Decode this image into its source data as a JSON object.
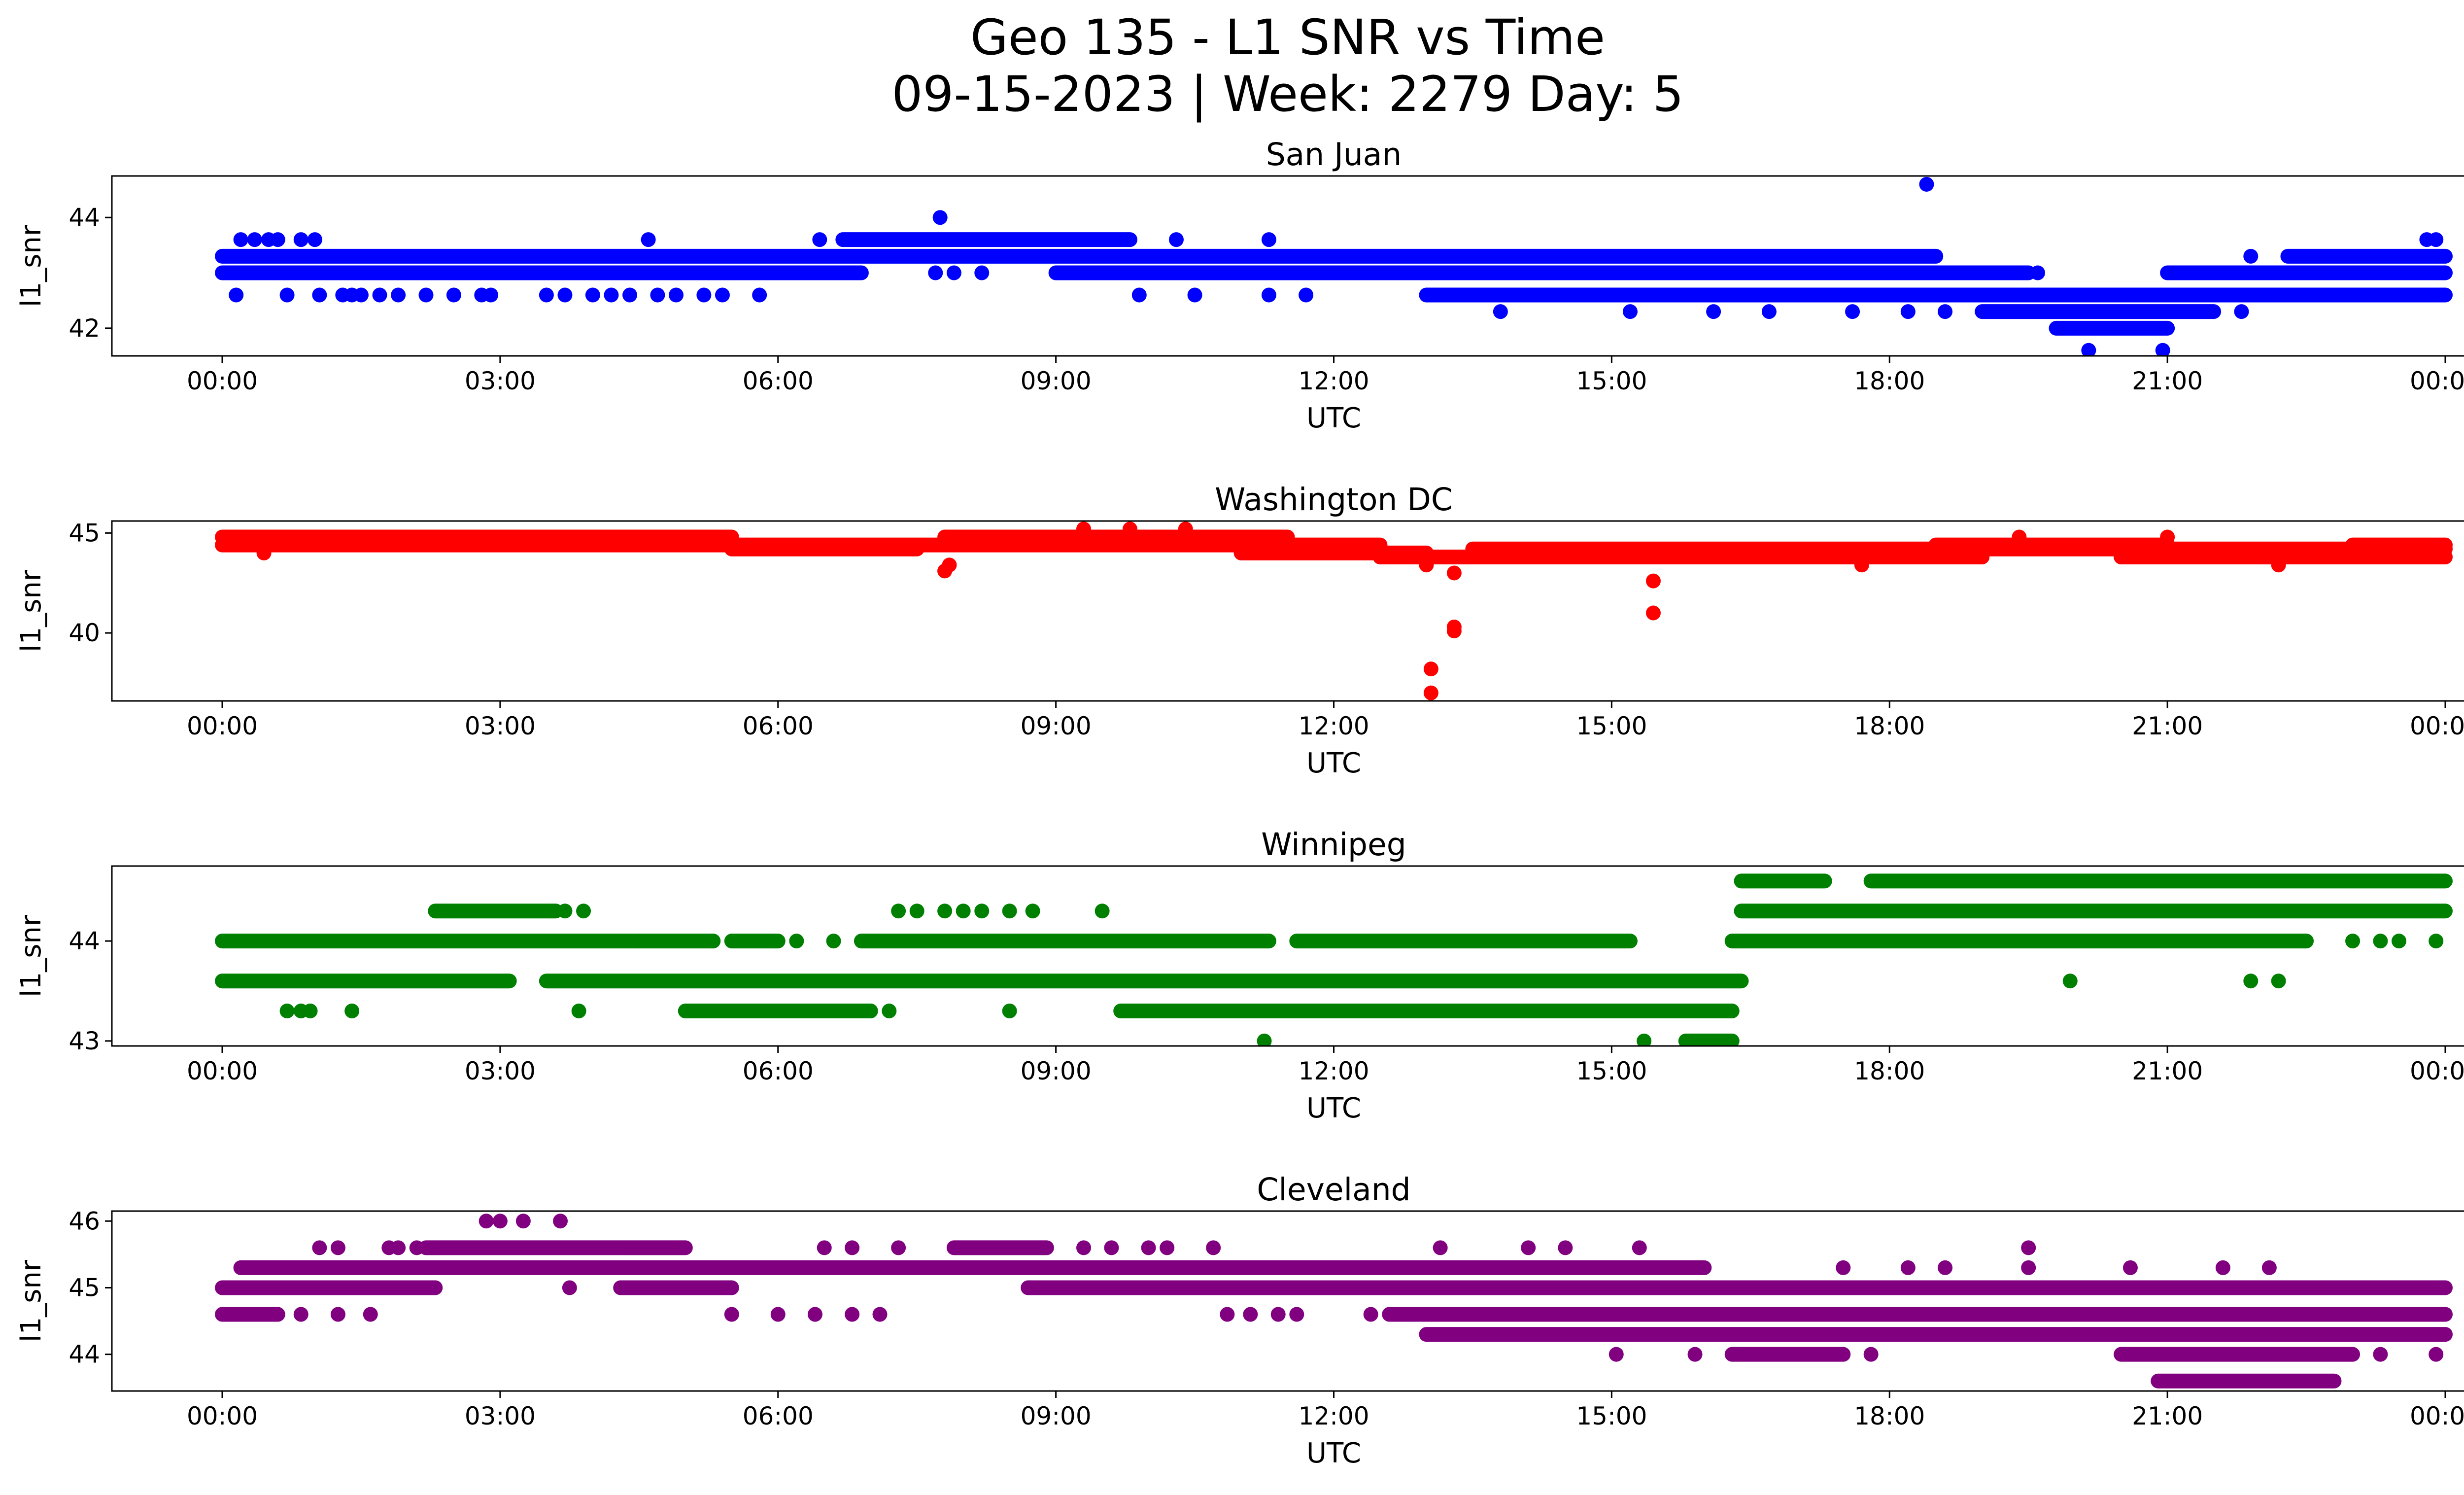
{
  "figure": {
    "title_line1": "Geo 135 - L1 SNR vs Time",
    "title_line2": "09-15-2023 | Week: 2279 Day: 5"
  },
  "chart_data": [
    {
      "type": "scatter",
      "title": "San Juan",
      "xlabel": "UTC",
      "ylabel": "l1_snr",
      "color": "#0000ff",
      "xlim": [
        "00:00",
        "24:00"
      ],
      "ylim": [
        41.5,
        44.75
      ],
      "x_ticks": [
        "00:00",
        "03:00",
        "06:00",
        "09:00",
        "12:00",
        "15:00",
        "18:00",
        "21:00",
        "00:00"
      ],
      "y_ticks": [
        42,
        44
      ],
      "runs": [
        {
          "y": 43.0,
          "x_start": 0.0,
          "x_end": 6.9
        },
        {
          "y": 43.3,
          "x_start": 0.0,
          "x_end": 18.5
        },
        {
          "y": 43.6,
          "x_start": 6.7,
          "x_end": 9.8
        },
        {
          "y": 43.0,
          "x_start": 9.0,
          "x_end": 19.5
        },
        {
          "y": 42.6,
          "x_start": 13.0,
          "x_end": 20.5
        },
        {
          "y": 42.3,
          "x_start": 19.0,
          "x_end": 21.5
        },
        {
          "y": 42.6,
          "x_start": 20.0,
          "x_end": 24.0
        },
        {
          "y": 43.0,
          "x_start": 21.0,
          "x_end": 24.0
        },
        {
          "y": 43.3,
          "x_start": 22.3,
          "x_end": 24.0
        },
        {
          "y": 42.0,
          "x_start": 19.8,
          "x_end": 21.0
        }
      ],
      "points": [
        {
          "x": 0.15,
          "y": 42.6
        },
        {
          "x": 0.2,
          "y": 43.6
        },
        {
          "x": 0.35,
          "y": 43.6
        },
        {
          "x": 0.5,
          "y": 43.6
        },
        {
          "x": 0.6,
          "y": 43.6
        },
        {
          "x": 0.7,
          "y": 42.6
        },
        {
          "x": 0.85,
          "y": 43.6
        },
        {
          "x": 1.0,
          "y": 43.6
        },
        {
          "x": 1.05,
          "y": 42.6
        },
        {
          "x": 1.3,
          "y": 42.6
        },
        {
          "x": 1.4,
          "y": 42.6
        },
        {
          "x": 1.5,
          "y": 42.6
        },
        {
          "x": 1.7,
          "y": 42.6
        },
        {
          "x": 1.9,
          "y": 42.6
        },
        {
          "x": 2.2,
          "y": 42.6
        },
        {
          "x": 2.5,
          "y": 42.6
        },
        {
          "x": 2.8,
          "y": 42.6
        },
        {
          "x": 2.9,
          "y": 42.6
        },
        {
          "x": 3.5,
          "y": 42.6
        },
        {
          "x": 3.7,
          "y": 42.6
        },
        {
          "x": 4.0,
          "y": 42.6
        },
        {
          "x": 4.2,
          "y": 42.6
        },
        {
          "x": 4.4,
          "y": 42.6
        },
        {
          "x": 4.6,
          "y": 43.6
        },
        {
          "x": 4.7,
          "y": 42.6
        },
        {
          "x": 4.9,
          "y": 42.6
        },
        {
          "x": 5.2,
          "y": 42.6
        },
        {
          "x": 5.4,
          "y": 42.6
        },
        {
          "x": 5.8,
          "y": 42.6
        },
        {
          "x": 6.45,
          "y": 43.6
        },
        {
          "x": 7.75,
          "y": 44.0
        },
        {
          "x": 7.7,
          "y": 43.0
        },
        {
          "x": 7.9,
          "y": 43.0
        },
        {
          "x": 8.2,
          "y": 43.0
        },
        {
          "x": 9.9,
          "y": 42.6
        },
        {
          "x": 10.5,
          "y": 42.6
        },
        {
          "x": 11.3,
          "y": 42.6
        },
        {
          "x": 11.7,
          "y": 42.6
        },
        {
          "x": 10.3,
          "y": 43.6
        },
        {
          "x": 11.3,
          "y": 43.6
        },
        {
          "x": 13.8,
          "y": 42.3
        },
        {
          "x": 15.2,
          "y": 42.3
        },
        {
          "x": 16.1,
          "y": 42.3
        },
        {
          "x": 16.7,
          "y": 42.3
        },
        {
          "x": 17.6,
          "y": 42.3
        },
        {
          "x": 18.2,
          "y": 42.3
        },
        {
          "x": 18.6,
          "y": 42.3
        },
        {
          "x": 18.4,
          "y": 44.6
        },
        {
          "x": 20.15,
          "y": 41.6
        },
        {
          "x": 20.95,
          "y": 41.6
        },
        {
          "x": 21.8,
          "y": 42.3
        },
        {
          "x": 21.9,
          "y": 43.3
        },
        {
          "x": 23.8,
          "y": 43.6
        },
        {
          "x": 23.9,
          "y": 43.6
        },
        {
          "x": 23.0,
          "y": 42.6
        },
        {
          "x": 19.6,
          "y": 43.0
        }
      ]
    },
    {
      "type": "scatter",
      "title": "Washington DC",
      "xlabel": "UTC",
      "ylabel": "l1_snr",
      "color": "#ff0000",
      "xlim": [
        "00:00",
        "24:00"
      ],
      "ylim": [
        36.6,
        45.6
      ],
      "x_ticks": [
        "00:00",
        "03:00",
        "06:00",
        "09:00",
        "12:00",
        "15:00",
        "18:00",
        "21:00",
        "00:00"
      ],
      "y_ticks": [
        40,
        45
      ],
      "runs": [
        {
          "y": 44.8,
          "x_start": 0.0,
          "x_end": 5.5
        },
        {
          "y": 44.4,
          "x_start": 0.0,
          "x_end": 5.0
        },
        {
          "y": 44.4,
          "x_start": 5.0,
          "x_end": 8.0
        },
        {
          "y": 44.2,
          "x_start": 5.5,
          "x_end": 7.5
        },
        {
          "y": 44.8,
          "x_start": 7.8,
          "x_end": 11.5
        },
        {
          "y": 44.4,
          "x_start": 8.0,
          "x_end": 12.5
        },
        {
          "y": 44.0,
          "x_start": 11.0,
          "x_end": 13.0
        },
        {
          "y": 43.8,
          "x_start": 12.5,
          "x_end": 16.5
        },
        {
          "y": 44.2,
          "x_start": 13.5,
          "x_end": 19.0
        },
        {
          "y": 43.8,
          "x_start": 16.0,
          "x_end": 19.0
        },
        {
          "y": 44.4,
          "x_start": 18.5,
          "x_end": 21.0
        },
        {
          "y": 44.2,
          "x_start": 19.0,
          "x_end": 24.0
        },
        {
          "y": 43.8,
          "x_start": 20.5,
          "x_end": 24.0
        },
        {
          "y": 44.4,
          "x_start": 23.0,
          "x_end": 24.0
        }
      ],
      "points": [
        {
          "x": 7.8,
          "y": 43.1
        },
        {
          "x": 7.85,
          "y": 43.4
        },
        {
          "x": 13.05,
          "y": 38.2
        },
        {
          "x": 13.05,
          "y": 37.0
        },
        {
          "x": 13.3,
          "y": 40.1
        },
        {
          "x": 13.3,
          "y": 40.3
        },
        {
          "x": 15.45,
          "y": 41.0
        },
        {
          "x": 15.45,
          "y": 42.6
        },
        {
          "x": 13.3,
          "y": 43.0
        },
        {
          "x": 13.0,
          "y": 43.4
        },
        {
          "x": 0.45,
          "y": 44.0
        },
        {
          "x": 9.3,
          "y": 45.2
        },
        {
          "x": 9.8,
          "y": 45.2
        },
        {
          "x": 10.4,
          "y": 45.2
        },
        {
          "x": 17.7,
          "y": 43.4
        },
        {
          "x": 22.2,
          "y": 43.4
        },
        {
          "x": 21.0,
          "y": 44.8
        },
        {
          "x": 19.4,
          "y": 44.8
        }
      ]
    },
    {
      "type": "scatter",
      "title": "Winnipeg",
      "xlabel": "UTC",
      "ylabel": "l1_snr",
      "color": "#008000",
      "xlim": [
        "00:00",
        "24:00"
      ],
      "ylim": [
        42.95,
        44.75
      ],
      "x_ticks": [
        "00:00",
        "03:00",
        "06:00",
        "09:00",
        "12:00",
        "15:00",
        "18:00",
        "21:00",
        "00:00"
      ],
      "y_ticks": [
        43,
        44
      ],
      "runs": [
        {
          "y": 44.0,
          "x_start": 0.0,
          "x_end": 5.3
        },
        {
          "y": 43.6,
          "x_start": 0.0,
          "x_end": 3.1
        },
        {
          "y": 44.3,
          "x_start": 2.3,
          "x_end": 3.6
        },
        {
          "y": 43.6,
          "x_start": 3.5,
          "x_end": 16.4
        },
        {
          "y": 43.3,
          "x_start": 5.0,
          "x_end": 7.0
        },
        {
          "y": 44.0,
          "x_start": 5.5,
          "x_end": 6.0
        },
        {
          "y": 44.0,
          "x_start": 6.9,
          "x_end": 11.3
        },
        {
          "y": 43.3,
          "x_start": 9.7,
          "x_end": 16.3
        },
        {
          "y": 44.0,
          "x_start": 11.6,
          "x_end": 15.2
        },
        {
          "y": 43.0,
          "x_start": 15.8,
          "x_end": 16.3
        },
        {
          "y": 44.6,
          "x_start": 16.4,
          "x_end": 17.3
        },
        {
          "y": 44.3,
          "x_start": 16.4,
          "x_end": 24.0
        },
        {
          "y": 44.0,
          "x_start": 16.3,
          "x_end": 22.5
        },
        {
          "y": 44.6,
          "x_start": 17.8,
          "x_end": 24.0
        }
      ],
      "points": [
        {
          "x": 0.7,
          "y": 43.3
        },
        {
          "x": 0.85,
          "y": 43.3
        },
        {
          "x": 0.95,
          "y": 43.3
        },
        {
          "x": 1.4,
          "y": 43.3
        },
        {
          "x": 3.7,
          "y": 44.3
        },
        {
          "x": 3.9,
          "y": 44.3
        },
        {
          "x": 3.85,
          "y": 43.3
        },
        {
          "x": 4.5,
          "y": 44.0
        },
        {
          "x": 5.3,
          "y": 44.0
        },
        {
          "x": 6.2,
          "y": 44.0
        },
        {
          "x": 6.6,
          "y": 44.0
        },
        {
          "x": 7.3,
          "y": 44.3
        },
        {
          "x": 7.5,
          "y": 44.3
        },
        {
          "x": 7.8,
          "y": 44.3
        },
        {
          "x": 8.0,
          "y": 44.3
        },
        {
          "x": 8.2,
          "y": 44.3
        },
        {
          "x": 8.5,
          "y": 44.3
        },
        {
          "x": 8.75,
          "y": 44.3
        },
        {
          "x": 9.5,
          "y": 44.3
        },
        {
          "x": 7.2,
          "y": 43.3
        },
        {
          "x": 8.5,
          "y": 43.3
        },
        {
          "x": 11.25,
          "y": 43.0
        },
        {
          "x": 15.35,
          "y": 43.0
        },
        {
          "x": 19.95,
          "y": 43.6
        },
        {
          "x": 21.9,
          "y": 43.6
        },
        {
          "x": 22.2,
          "y": 43.6
        },
        {
          "x": 23.0,
          "y": 44.0
        },
        {
          "x": 23.3,
          "y": 44.0
        },
        {
          "x": 23.9,
          "y": 44.0
        },
        {
          "x": 23.5,
          "y": 44.0
        }
      ]
    },
    {
      "type": "scatter",
      "title": "Cleveland",
      "xlabel": "UTC",
      "ylabel": "l1_snr",
      "color": "#800080",
      "xlim": [
        "00:00",
        "24:00"
      ],
      "ylim": [
        43.45,
        46.15
      ],
      "x_ticks": [
        "00:00",
        "03:00",
        "06:00",
        "09:00",
        "12:00",
        "15:00",
        "18:00",
        "21:00",
        "00:00"
      ],
      "y_ticks": [
        44,
        45,
        46
      ],
      "runs": [
        {
          "y": 45.0,
          "x_start": 0.0,
          "x_end": 2.3
        },
        {
          "y": 44.6,
          "x_start": 0.0,
          "x_end": 0.6
        },
        {
          "y": 45.3,
          "x_start": 0.2,
          "x_end": 2.2
        },
        {
          "y": 45.6,
          "x_start": 2.2,
          "x_end": 5.0
        },
        {
          "y": 45.3,
          "x_start": 2.2,
          "x_end": 16.0
        },
        {
          "y": 45.0,
          "x_start": 4.3,
          "x_end": 5.5
        },
        {
          "y": 45.0,
          "x_start": 8.7,
          "x_end": 24.0
        },
        {
          "y": 45.6,
          "x_start": 7.9,
          "x_end": 8.9
        },
        {
          "y": 44.6,
          "x_start": 12.6,
          "x_end": 24.0
        },
        {
          "y": 44.3,
          "x_start": 13.0,
          "x_end": 20.0
        },
        {
          "y": 44.0,
          "x_start": 16.3,
          "x_end": 17.5
        },
        {
          "y": 44.3,
          "x_start": 20.0,
          "x_end": 24.0
        },
        {
          "y": 44.0,
          "x_start": 20.5,
          "x_end": 23.0
        },
        {
          "y": 43.6,
          "x_start": 20.9,
          "x_end": 22.8
        }
      ],
      "points": [
        {
          "x": 0.85,
          "y": 44.6
        },
        {
          "x": 1.05,
          "y": 45.6
        },
        {
          "x": 1.25,
          "y": 45.6
        },
        {
          "x": 1.25,
          "y": 44.6
        },
        {
          "x": 1.6,
          "y": 44.6
        },
        {
          "x": 1.8,
          "y": 45.6
        },
        {
          "x": 1.9,
          "y": 45.6
        },
        {
          "x": 2.1,
          "y": 45.6
        },
        {
          "x": 2.85,
          "y": 46.0
        },
        {
          "x": 3.0,
          "y": 46.0
        },
        {
          "x": 3.25,
          "y": 46.0
        },
        {
          "x": 3.65,
          "y": 46.0
        },
        {
          "x": 3.75,
          "y": 45.0
        },
        {
          "x": 5.5,
          "y": 44.6
        },
        {
          "x": 6.0,
          "y": 44.6
        },
        {
          "x": 6.4,
          "y": 44.6
        },
        {
          "x": 6.8,
          "y": 44.6
        },
        {
          "x": 7.1,
          "y": 44.6
        },
        {
          "x": 6.5,
          "y": 45.6
        },
        {
          "x": 6.8,
          "y": 45.6
        },
        {
          "x": 7.3,
          "y": 45.6
        },
        {
          "x": 9.3,
          "y": 45.6
        },
        {
          "x": 9.6,
          "y": 45.6
        },
        {
          "x": 10.0,
          "y": 45.6
        },
        {
          "x": 10.2,
          "y": 45.6
        },
        {
          "x": 10.7,
          "y": 45.6
        },
        {
          "x": 10.85,
          "y": 44.6
        },
        {
          "x": 11.1,
          "y": 44.6
        },
        {
          "x": 11.4,
          "y": 44.6
        },
        {
          "x": 11.6,
          "y": 44.6
        },
        {
          "x": 12.4,
          "y": 44.6
        },
        {
          "x": 13.15,
          "y": 45.6
        },
        {
          "x": 14.1,
          "y": 45.6
        },
        {
          "x": 14.5,
          "y": 45.6
        },
        {
          "x": 15.3,
          "y": 45.6
        },
        {
          "x": 15.05,
          "y": 44.0
        },
        {
          "x": 15.9,
          "y": 44.0
        },
        {
          "x": 17.5,
          "y": 45.3
        },
        {
          "x": 17.8,
          "y": 44.0
        },
        {
          "x": 18.2,
          "y": 45.3
        },
        {
          "x": 18.6,
          "y": 45.3
        },
        {
          "x": 19.5,
          "y": 45.6
        },
        {
          "x": 19.5,
          "y": 45.3
        },
        {
          "x": 20.6,
          "y": 45.3
        },
        {
          "x": 21.0,
          "y": 45.0
        },
        {
          "x": 21.2,
          "y": 45.0
        },
        {
          "x": 21.6,
          "y": 45.3
        },
        {
          "x": 22.1,
          "y": 45.3
        },
        {
          "x": 23.3,
          "y": 44.0
        },
        {
          "x": 23.9,
          "y": 44.0
        }
      ]
    }
  ]
}
